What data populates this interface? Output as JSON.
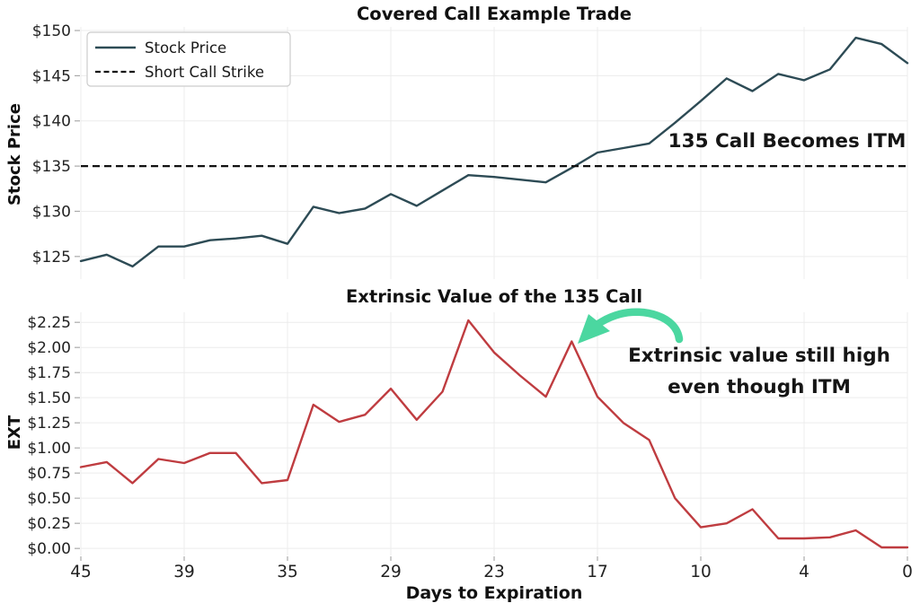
{
  "figure": {
    "background": "#ffffff",
    "colors": {
      "stock_line": "#2d4b55",
      "strike_line": "#111111",
      "ext_line": "#bf3c40",
      "arrow": "#4bd7a0",
      "grid": "#ececec",
      "tick_mark": "#aaaaaa",
      "tick_text": "#222222",
      "title_text": "#111111",
      "legend_border": "#cccccc"
    }
  },
  "chart_data": [
    {
      "type": "line",
      "title": "Covered Call Example Trade",
      "xlabel": "",
      "ylabel": "Stock Price",
      "x_tick_labels": [
        "45",
        "39",
        "35",
        "29",
        "23",
        "17",
        "10",
        "4",
        "0"
      ],
      "x_tick_indices": [
        0,
        4,
        8,
        12,
        16,
        20,
        24,
        28,
        32
      ],
      "y_ticks": [
        125,
        130,
        135,
        140,
        145,
        150
      ],
      "y_tick_labels": [
        "$125",
        "$130",
        "$135",
        "$140",
        "$145",
        "$150"
      ],
      "ylim": [
        122.5,
        150.4
      ],
      "grid": true,
      "legend_position": "upper left",
      "series": [
        {
          "name": "Stock Price",
          "type": "line",
          "values": [
            124.5,
            125.2,
            123.9,
            126.1,
            126.1,
            126.8,
            127.0,
            127.3,
            126.4,
            130.5,
            129.8,
            130.3,
            131.9,
            130.6,
            132.3,
            134.0,
            133.8,
            133.5,
            133.2,
            134.8,
            136.5,
            137.0,
            137.5,
            139.8,
            142.2,
            144.7,
            143.3,
            145.2,
            144.5,
            145.7,
            149.2,
            148.5,
            146.4
          ]
        },
        {
          "name": "Short Call Strike",
          "type": "hline",
          "value": 135
        }
      ],
      "annotations": [
        "135 Call Becomes ITM"
      ]
    },
    {
      "type": "line",
      "title": "Extrinsic Value of the 135 Call",
      "xlabel": "Days to Expiration",
      "ylabel": "EXT",
      "x_tick_labels": [
        "45",
        "39",
        "35",
        "29",
        "23",
        "17",
        "10",
        "4",
        "0"
      ],
      "x_tick_indices": [
        0,
        4,
        8,
        12,
        16,
        20,
        24,
        28,
        32
      ],
      "y_ticks": [
        0,
        0.25,
        0.5,
        0.75,
        1,
        1.25,
        1.5,
        1.75,
        2,
        2.25
      ],
      "y_tick_labels": [
        "$0.00",
        "$0.25",
        "$0.50",
        "$0.75",
        "$1.00",
        "$1.25",
        "$1.50",
        "$1.75",
        "$2.00",
        "$2.25"
      ],
      "ylim": [
        -0.07,
        2.35
      ],
      "grid": true,
      "series": [
        {
          "name": "EXT",
          "type": "line",
          "values": [
            0.81,
            0.86,
            0.65,
            0.89,
            0.85,
            0.95,
            0.95,
            0.65,
            0.68,
            1.43,
            1.26,
            1.33,
            1.59,
            1.28,
            1.56,
            2.27,
            1.95,
            1.72,
            1.51,
            2.06,
            1.51,
            1.25,
            1.08,
            0.5,
            0.21,
            0.25,
            0.39,
            0.1,
            0.1,
            0.11,
            0.18,
            0.01,
            0.01
          ]
        }
      ],
      "annotations": [
        "Extrinsic value still high",
        "even though ITM"
      ]
    }
  ]
}
